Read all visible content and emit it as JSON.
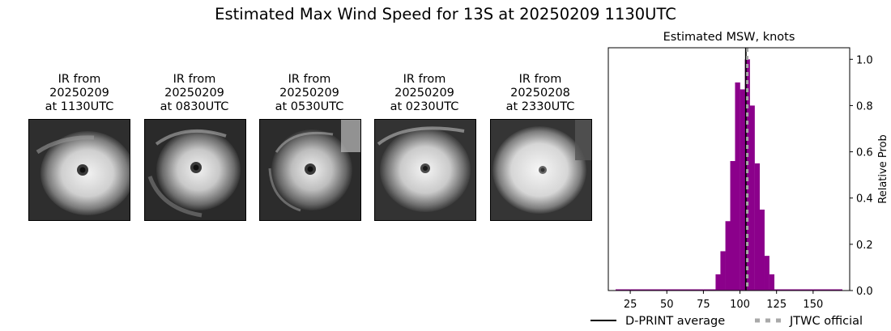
{
  "figure_title": "Estimated Max Wind Speed for 13S at 20250209 1130UTC",
  "ir_panels": [
    {
      "line1": "IR from",
      "line2": "20250209",
      "line3": "at 1130UTC"
    },
    {
      "line1": "IR from",
      "line2": "20250209",
      "line3": "at 0830UTC"
    },
    {
      "line1": "IR from",
      "line2": "20250209",
      "line3": "at 0530UTC"
    },
    {
      "line1": "IR from",
      "line2": "20250209",
      "line3": "at 0230UTC"
    },
    {
      "line1": "IR from",
      "line2": "20250208",
      "line3": "at 2330UTC"
    }
  ],
  "colors": {
    "bars": "#8b008b",
    "dprint_line": "#000000",
    "jtwc_line": "#a9a9a9"
  },
  "chart_data": {
    "type": "bar",
    "title": "Estimated MSW, knots",
    "xlabel": "",
    "ylabel": "Relative Prob",
    "y_axis_side": "right",
    "xlim": [
      10,
      175
    ],
    "ylim": [
      0,
      1.05
    ],
    "xticks": [
      25,
      50,
      75,
      100,
      125,
      150
    ],
    "yticks": [
      0.0,
      0.2,
      0.4,
      0.6,
      0.8,
      1.0
    ],
    "bin_width": 3.33,
    "bins": [
      {
        "x": 85,
        "value": 0.07
      },
      {
        "x": 88.3,
        "value": 0.17
      },
      {
        "x": 91.7,
        "value": 0.3
      },
      {
        "x": 95,
        "value": 0.56
      },
      {
        "x": 98.3,
        "value": 0.9
      },
      {
        "x": 101.7,
        "value": 0.87
      },
      {
        "x": 105,
        "value": 1.0
      },
      {
        "x": 108.3,
        "value": 0.8
      },
      {
        "x": 111.7,
        "value": 0.55
      },
      {
        "x": 115,
        "value": 0.35
      },
      {
        "x": 118.3,
        "value": 0.15
      },
      {
        "x": 121.7,
        "value": 0.07
      }
    ],
    "baseline_range": [
      15,
      170
    ],
    "vlines": [
      {
        "name": "D-PRINT average",
        "x": 104,
        "style": "solid"
      },
      {
        "name": "JTWC official",
        "x": 105,
        "style": "dashed"
      }
    ],
    "legend_position": "bottom"
  }
}
